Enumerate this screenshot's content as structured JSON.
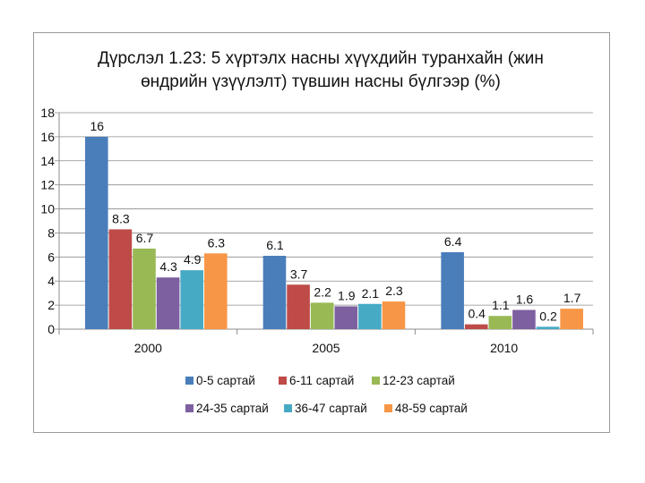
{
  "chart_data": {
    "type": "bar",
    "title_line1": "Дүрслэл 1.23: 5 хүртэлх насны хүүхдийн туранхайн (жин",
    "title_line2": "өндрийн үзүүлэлт) түвшин насны бүлгээр (%)",
    "categories": [
      "2000",
      "2005",
      "2010"
    ],
    "ylim": [
      0,
      18
    ],
    "yticks": [
      "0",
      "2",
      "4",
      "6",
      "8",
      "10",
      "12",
      "14",
      "16",
      "18"
    ],
    "ytick_values": [
      0,
      2,
      4,
      6,
      8,
      10,
      12,
      14,
      16,
      18
    ],
    "xlabel": "",
    "ylabel": "",
    "series": [
      {
        "name": "0-5 сартай",
        "color": "#4a7ebb",
        "values": [
          16,
          6.1,
          6.4
        ],
        "labels": [
          "16",
          "6.1",
          "6.4"
        ]
      },
      {
        "name": "6-11 сартай",
        "color": "#be4b48",
        "values": [
          8.3,
          3.7,
          0.4
        ],
        "labels": [
          "8.3",
          "3.7",
          "0.4"
        ]
      },
      {
        "name": "12-23 сартай",
        "color": "#98b954",
        "values": [
          6.7,
          2.2,
          1.1
        ],
        "labels": [
          "6.7",
          "2.2",
          "1.1"
        ]
      },
      {
        "name": "24-35 сартай",
        "color": "#7d60a0",
        "values": [
          4.3,
          1.9,
          1.6
        ],
        "labels": [
          "4.3",
          "1.9",
          "1.6"
        ]
      },
      {
        "name": "36-47 сартай",
        "color": "#46aac5",
        "values": [
          4.9,
          2.1,
          0.2
        ],
        "labels": [
          "4.9",
          "2.1",
          "0.2"
        ]
      },
      {
        "name": "48-59 сартай",
        "color": "#f79646",
        "values": [
          6.3,
          2.3,
          1.7
        ],
        "labels": [
          "6.3",
          "2.3",
          "1.7"
        ]
      }
    ],
    "grid": true,
    "legend_position": "bottom"
  }
}
